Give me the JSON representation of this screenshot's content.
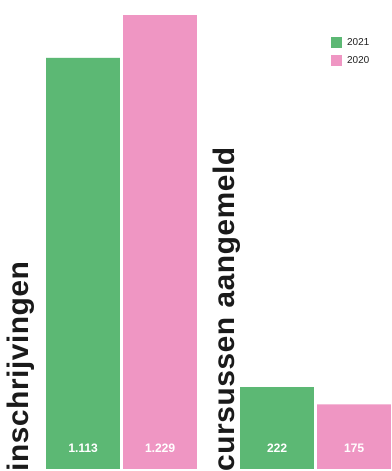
{
  "chart_data": {
    "type": "bar",
    "categories": [
      "inschrijvingen",
      "cursussen aangemeld"
    ],
    "series": [
      {
        "name": "2021",
        "values": [
          1113,
          222
        ],
        "labels": [
          "1.113",
          "222"
        ],
        "color": "#5cb874"
      },
      {
        "name": "2020",
        "values": [
          1229,
          175
        ],
        "labels": [
          "1.229",
          "175"
        ],
        "color": "#ef96c3"
      }
    ],
    "legend": {
      "position": "top-right"
    },
    "grid": false
  }
}
